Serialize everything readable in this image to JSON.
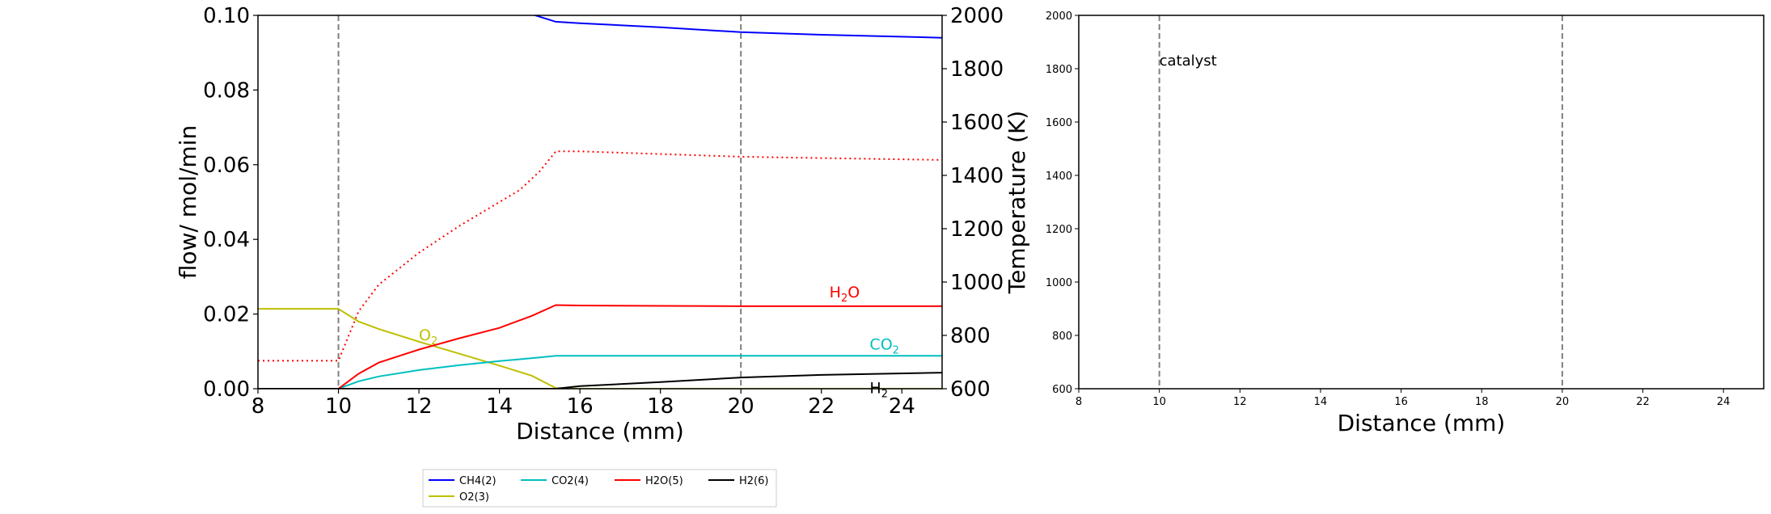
{
  "chart_data": [
    {
      "type": "line",
      "title": "",
      "xlabel": "Distance (mm)",
      "ylabel": "flow/ mol/min",
      "y2label": "Temperature (K)",
      "xlim": [
        8,
        25
      ],
      "ylim": [
        0,
        0.1
      ],
      "y2lim": [
        600,
        2000
      ],
      "xticks": [
        "8",
        "10",
        "12",
        "14",
        "16",
        "18",
        "20",
        "22",
        "24"
      ],
      "yticks": [
        "0.00",
        "0.02",
        "0.04",
        "0.06",
        "0.08",
        "0.10"
      ],
      "y2ticks": [
        "600",
        "800",
        "1000",
        "1200",
        "1400",
        "1600",
        "1800",
        "2000"
      ],
      "vlines": [
        10,
        20
      ],
      "series": [
        {
          "name": "CH4(2)",
          "color": "#0000ff",
          "x": [
            8,
            10,
            12,
            14,
            14.8,
            15.4,
            16,
            18,
            20,
            22,
            25
          ],
          "y": [
            0.1035,
            0.1035,
            0.1025,
            0.1012,
            0.1003,
            0.0983,
            0.0979,
            0.0968,
            0.0955,
            0.0948,
            0.094
          ]
        },
        {
          "name": "O2(3)",
          "color": "#bfbf00",
          "x": [
            8,
            10,
            10.5,
            11,
            12,
            13,
            14,
            14.8,
            15.4,
            16,
            25
          ],
          "y": [
            0.0214,
            0.0214,
            0.018,
            0.016,
            0.0126,
            0.0094,
            0.0062,
            0.0035,
            0.0002,
            0.0,
            0.0
          ]
        },
        {
          "name": "CO2(4)",
          "color": "#00bfbf",
          "x": [
            8,
            10,
            10.5,
            11,
            12,
            13,
            14,
            15,
            15.4,
            16,
            25
          ],
          "y": [
            0.0,
            0.0,
            0.002,
            0.0033,
            0.005,
            0.0063,
            0.0074,
            0.0084,
            0.0088,
            0.0088,
            0.0088
          ]
        },
        {
          "name": "H2O(5)",
          "color": "#ff0000",
          "x": [
            8,
            10,
            10.5,
            11,
            12,
            13,
            14,
            14.8,
            15.4,
            16,
            20,
            25
          ],
          "y": [
            0.0,
            0.0,
            0.004,
            0.007,
            0.0105,
            0.0135,
            0.0163,
            0.0195,
            0.0224,
            0.0223,
            0.0221,
            0.0221
          ]
        },
        {
          "name": "H2(6)",
          "color": "#000000",
          "x": [
            8,
            15.4,
            16,
            18,
            20,
            22,
            25
          ],
          "y": [
            0.0,
            0.0,
            0.0007,
            0.0018,
            0.003,
            0.0037,
            0.0043
          ]
        }
      ],
      "temperature_series": {
        "name": "Temperature",
        "color": "#ff0000",
        "style": "dotted",
        "x": [
          8,
          10,
          10.5,
          11,
          12,
          13,
          14,
          14.5,
          15,
          15.4,
          16,
          18,
          20,
          22,
          25
        ],
        "y": [
          705,
          705,
          890,
          990,
          1110,
          1210,
          1300,
          1345,
          1415,
          1490,
          1490,
          1480,
          1470,
          1465,
          1458
        ]
      },
      "annotations": [
        {
          "text": "H",
          "sub": "2",
          "rest": "O",
          "x": 22.2,
          "y": 0.0245,
          "color": "#ff0000"
        },
        {
          "text": "CO",
          "sub": "2",
          "rest": "",
          "x": 23.2,
          "y": 0.0105,
          "color": "#00bfbf"
        },
        {
          "text": "O",
          "sub": "2",
          "rest": "",
          "x": 12.0,
          "y": 0.013,
          "color": "#bfbf00"
        },
        {
          "text": "H",
          "sub": "2",
          "rest": "",
          "x": 23.2,
          "y": -0.0012,
          "color": "#000000"
        }
      ],
      "legend": {
        "placement": "bottom-center",
        "entries": [
          {
            "label": "CH4(2)",
            "color": "#0000ff"
          },
          {
            "label": "CO2(4)",
            "color": "#00bfbf"
          },
          {
            "label": "H2O(5)",
            "color": "#ff0000"
          },
          {
            "label": "H2(6)",
            "color": "#000000"
          },
          {
            "label": "O2(3)",
            "color": "#bfbf00"
          }
        ]
      }
    },
    {
      "type": "line",
      "title": "",
      "xlabel": "Distance (mm)",
      "ylabel": "",
      "xlim": [
        8,
        25
      ],
      "ylim": [
        600,
        2000
      ],
      "xticks": [
        "8",
        "10",
        "12",
        "14",
        "16",
        "18",
        "20",
        "22",
        "24"
      ],
      "yticks": [
        "600",
        "800",
        "1000",
        "1200",
        "1400",
        "1600",
        "1800",
        "2000"
      ],
      "vlines": [
        10,
        20
      ],
      "annotations": [
        {
          "text": "catalyst",
          "x": 10,
          "y": 1830,
          "color": "#000000"
        }
      ],
      "series": []
    }
  ]
}
